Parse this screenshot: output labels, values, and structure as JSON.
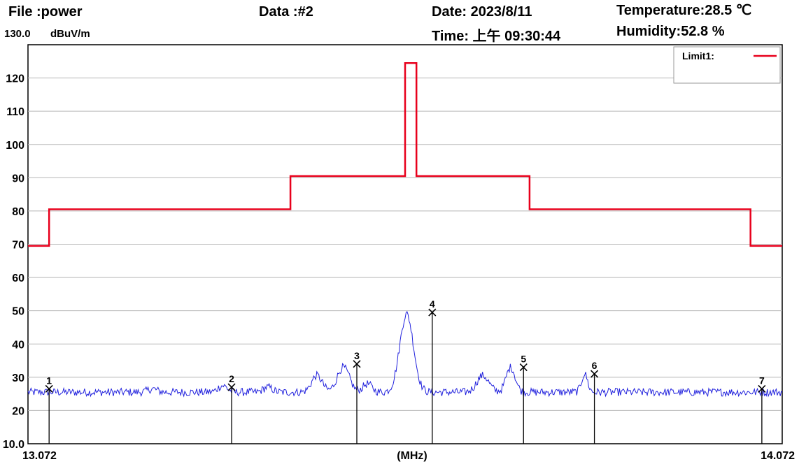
{
  "header": {
    "file": "File :power",
    "data": "Data :#2",
    "date": "Date: 2023/8/11",
    "time": "Time: 上午 09:30:44",
    "temperature": "Temperature:28.5 ℃",
    "humidity": "Humidity:52.8 %",
    "ytop": "130.0",
    "yunit": "dBuV/m"
  },
  "chart_data": {
    "type": "line",
    "xlabel": "(MHz)",
    "ylabel": "dBuV/m",
    "xlim": [
      13.072,
      14.072
    ],
    "ylim": [
      10.0,
      130.0
    ],
    "x_tick_labels": [
      "13.072",
      "14.072"
    ],
    "y_tick_labels": [
      "10.0",
      "20",
      "30",
      "40",
      "50",
      "60",
      "70",
      "80",
      "90",
      "100",
      "110",
      "120"
    ],
    "y_ticks": [
      10,
      20,
      30,
      40,
      50,
      60,
      70,
      80,
      90,
      100,
      110,
      120
    ],
    "grid": true,
    "legend": {
      "position": "top-right",
      "entries": [
        "Limit1:"
      ]
    },
    "limit_line": {
      "name": "Limit1:",
      "color": "#e8001c",
      "x": [
        13.072,
        13.1,
        13.1,
        13.42,
        13.42,
        13.572,
        13.572,
        13.587,
        13.587,
        13.737,
        13.737,
        14.03,
        14.03,
        14.072
      ],
      "y": [
        69.5,
        69.5,
        80.5,
        80.5,
        90.5,
        90.5,
        124.5,
        124.5,
        90.5,
        90.5,
        80.5,
        80.5,
        69.5,
        69.5
      ]
    },
    "trace": {
      "color": "#2222dd",
      "baseline": 25.5,
      "peaks": [
        {
          "x": 13.237,
          "y": 26.5,
          "w": 0.006
        },
        {
          "x": 13.33,
          "y": 27.5,
          "w": 0.006
        },
        {
          "x": 13.39,
          "y": 27.0,
          "w": 0.006
        },
        {
          "x": 13.455,
          "y": 30.5,
          "w": 0.007
        },
        {
          "x": 13.49,
          "y": 33.0,
          "w": 0.008
        },
        {
          "x": 13.522,
          "y": 28.0,
          "w": 0.006
        },
        {
          "x": 13.574,
          "y": 49.0,
          "w": 0.009
        },
        {
          "x": 13.675,
          "y": 30.5,
          "w": 0.008
        },
        {
          "x": 13.712,
          "y": 33.0,
          "w": 0.006
        },
        {
          "x": 13.81,
          "y": 31.0,
          "w": 0.004
        }
      ]
    },
    "markers": [
      {
        "label": "1",
        "x": 13.1,
        "y": 26.5
      },
      {
        "label": "2",
        "x": 13.342,
        "y": 27.0
      },
      {
        "label": "3",
        "x": 13.508,
        "y": 34.0
      },
      {
        "label": "4",
        "x": 13.608,
        "y": 49.5
      },
      {
        "label": "5",
        "x": 13.729,
        "y": 33.0
      },
      {
        "label": "6",
        "x": 13.823,
        "y": 31.0
      },
      {
        "label": "7",
        "x": 14.045,
        "y": 26.5
      }
    ]
  }
}
